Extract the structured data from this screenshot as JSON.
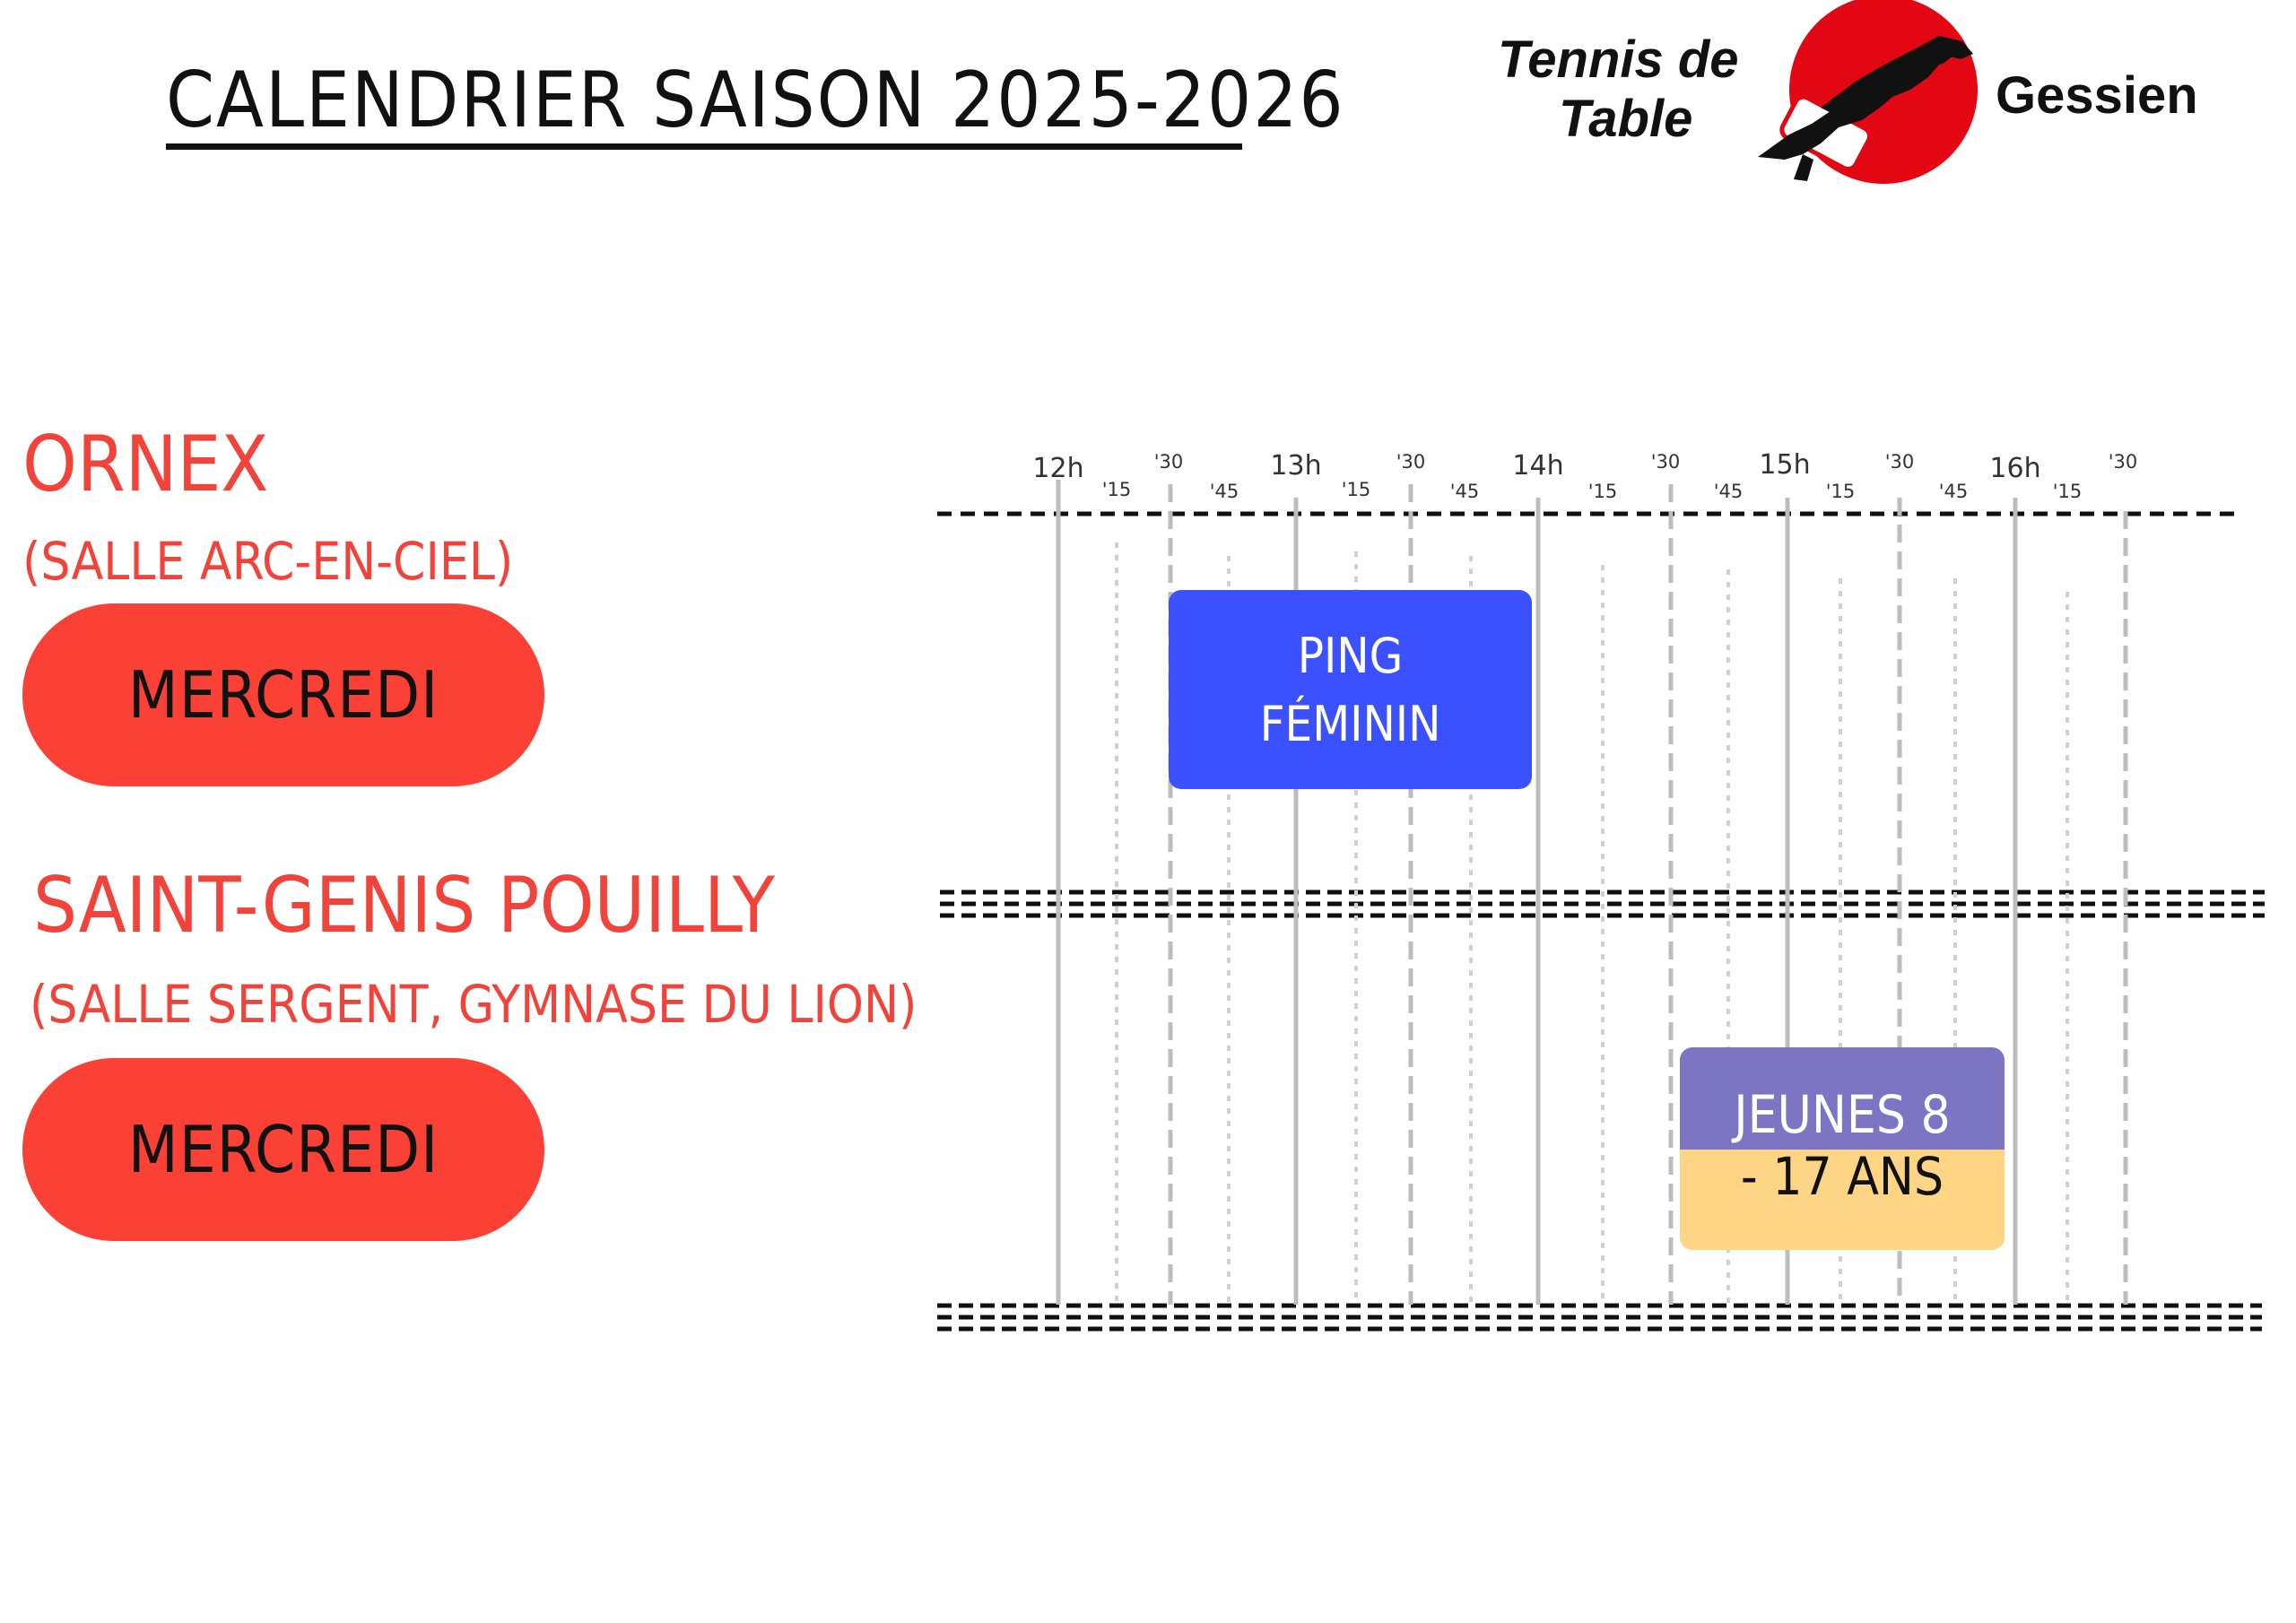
{
  "header": {
    "title": "CALENDRIER SAISON 2025-2026"
  },
  "logo": {
    "line1": "Tennis de",
    "line2": "Table",
    "line3": "Gessien",
    "icon": "wolf-paddle-icon",
    "colors": {
      "red": "#e30613",
      "black": "#111111"
    }
  },
  "timeline": {
    "hour_labels": [
      "12h",
      "13h",
      "14h",
      "15h",
      "16h"
    ],
    "quarter_labels": [
      "'15",
      "'30",
      "'45"
    ],
    "start_time": "12h",
    "end_time": "16h30"
  },
  "venues": [
    {
      "name": "ORNEX",
      "subtitle": "(SALLE ARC-EN-CIEL)",
      "day": "MERCREDI",
      "events": [
        {
          "line1": "PING",
          "line2": "FÉMININ",
          "start": "12h30",
          "end": "14h",
          "color": "#3b51ff"
        }
      ]
    },
    {
      "name": "SAINT-GENIS POUILLY",
      "subtitle": "(SALLE SERGENT, GYMNASE DU LION)",
      "day": "MERCREDI",
      "events": [
        {
          "line1": "JEUNES 8",
          "line2": "- 17 ANS",
          "start": "14h30",
          "end": "16h",
          "colors": [
            "#7b75c4",
            "#fed584"
          ]
        }
      ]
    }
  ],
  "colors": {
    "accent": "#f2433a",
    "pill": "#fb4136"
  }
}
